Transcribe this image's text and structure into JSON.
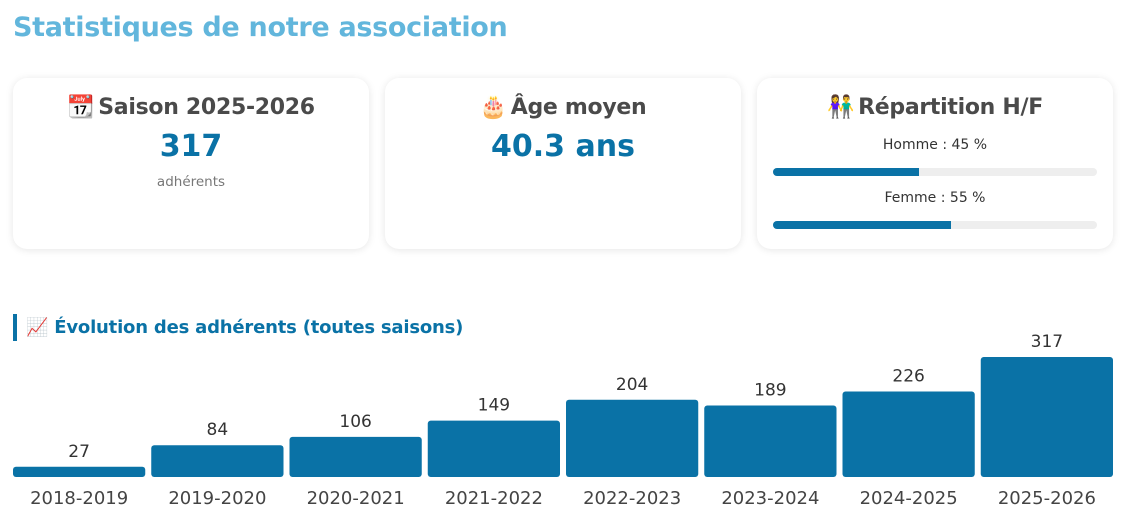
{
  "page": {
    "title": "Statistiques de notre association"
  },
  "cards": {
    "season": {
      "icon": "calendar-icon",
      "emoji": "📆",
      "title": "Saison 2025-2026",
      "value": "317",
      "sub": "adhérents"
    },
    "age": {
      "icon": "birthday-cake-icon",
      "emoji": "🎂",
      "title": "Âge moyen",
      "value": "40.3 ans"
    },
    "gender": {
      "icon": "couple-icon",
      "emoji": "👫",
      "title": "Répartition H/F",
      "rows": [
        {
          "label": "Homme : 45 %",
          "percent": 45
        },
        {
          "label": "Femme : 55 %",
          "percent": 55
        }
      ]
    }
  },
  "chart_section": {
    "icon": "chart-increasing-icon",
    "emoji": "📈",
    "title": "Évolution des adhérents (toutes saisons)"
  },
  "colors": {
    "accent": "#0a72a6",
    "heading": "#62b6dc",
    "track": "#eeeeee"
  },
  "chart_data": {
    "type": "bar",
    "categories": [
      "2018-2019",
      "2019-2020",
      "2020-2021",
      "2021-2022",
      "2022-2023",
      "2023-2024",
      "2024-2025",
      "2025-2026"
    ],
    "values": [
      27,
      84,
      106,
      149,
      204,
      189,
      226,
      317
    ],
    "title": "Évolution des adhérents (toutes saisons)",
    "xlabel": "",
    "ylabel": "",
    "grid": false,
    "data_labels": true
  }
}
